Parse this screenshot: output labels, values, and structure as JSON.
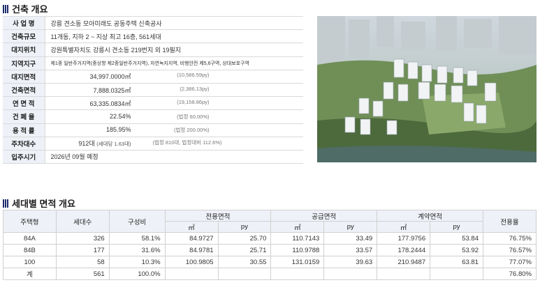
{
  "overview": {
    "title": "건축 개요",
    "rows": [
      {
        "key": "사 업 명",
        "value": "강릉 견소동 모아미래도 공동주택 신축공사"
      },
      {
        "key": "건축규모",
        "value": "11개동, 지하 2 ~ 지상 최고 16층, 561세대"
      },
      {
        "key": "대지위치",
        "value": "강원특별자치도 강릉시 견소동 219번지 외 19필지"
      },
      {
        "key": "지역지구",
        "value": "제1종 일반주거지역(중상향 제2종일반주거지역), 자연녹지지역, 비행안전 제5,6구역, 상대보호구역"
      }
    ],
    "numeric_rows": [
      {
        "key": "대지면적",
        "value": "34,997.0000㎡",
        "sub": "(10,586.59py)"
      },
      {
        "key": "건축면적",
        "value": "7,888.0325㎡",
        "sub": "(2,386.13py)"
      },
      {
        "key": "연 면 적",
        "value": "63,335.0834㎡",
        "sub": "(19,158.86py)"
      },
      {
        "key": "건 폐 율",
        "value": "22.54%",
        "sub": "(법정 60.00%)"
      },
      {
        "key": "용 적 률",
        "value": "185.95%",
        "sub": "(법정 200.00%)"
      },
      {
        "key": "주차대수",
        "value": "912대",
        "note": "(세대당 1.63대)",
        "sub": "(법정 810대, 법정대비 112.6%)"
      }
    ],
    "move_in": {
      "key": "입주시기",
      "value": "2026년 09월 예정"
    }
  },
  "unit_areas": {
    "title": "세대별 면적 개요",
    "headers": {
      "type": "주택형",
      "households": "세대수",
      "ratio": "구성비",
      "exclusive": "전용면적",
      "supply": "공급면적",
      "contract": "계약면적",
      "usage_rate": "전용율",
      "sqm": "㎡",
      "py": "py"
    },
    "rows": [
      {
        "type": "84A",
        "households": "326",
        "ratio": "58.1%",
        "ex_sqm": "84.9727",
        "ex_py": "25.70",
        "su_sqm": "110.7143",
        "su_py": "33.49",
        "co_sqm": "177.9756",
        "co_py": "53.84",
        "rate": "76.75%"
      },
      {
        "type": "84B",
        "households": "177",
        "ratio": "31.6%",
        "ex_sqm": "84.9781",
        "ex_py": "25.71",
        "su_sqm": "110.9788",
        "su_py": "33.57",
        "co_sqm": "178.2444",
        "co_py": "53.92",
        "rate": "76.57%"
      },
      {
        "type": "100",
        "households": "58",
        "ratio": "10.3%",
        "ex_sqm": "100.9805",
        "ex_py": "30.55",
        "su_sqm": "131.0159",
        "su_py": "39.63",
        "co_sqm": "210.9487",
        "co_py": "63.81",
        "rate": "77.07%"
      }
    ],
    "total": {
      "type": "계",
      "households": "561",
      "ratio": "100.0%",
      "rate": "76.80%"
    }
  },
  "colors": {
    "accent": "#1c2a6b",
    "header_bg": "#eef1f7"
  }
}
